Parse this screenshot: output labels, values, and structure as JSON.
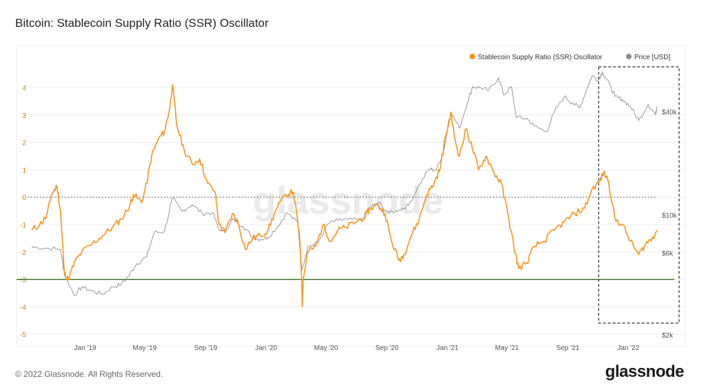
{
  "title": "Bitcoin: Stablecoin Supply Ratio (SSR) Oscillator",
  "footer": "© 2022 Glassnode. All Rights Reserved.",
  "brand": "glassnode",
  "watermark": "glassnode",
  "colors": {
    "ssr": "#f7931a",
    "price": "#8c8c8c",
    "threshold": "#2e6b12",
    "grid": "#ececec",
    "zero": "#555555"
  },
  "chart_data": {
    "type": "line",
    "title": "Bitcoin: Stablecoin Supply Ratio (SSR) Oscillator",
    "legend": {
      "position": "top-right",
      "entries": [
        "Stablecoin Supply Ratio (SSR) Oscillator",
        "Price [USD]"
      ]
    },
    "x_ticks": [
      "Jan '19",
      "May '19",
      "Sep '19",
      "Jan '20",
      "May '20",
      "Sep '20",
      "Jan '21",
      "May '21",
      "Sep '21",
      "Jan '22"
    ],
    "y_left": {
      "ticks": [
        "4",
        "3",
        "2",
        "1",
        "0",
        "-1",
        "-2",
        "-3",
        "-4",
        "-5"
      ],
      "range": [
        -5,
        4.8
      ]
    },
    "y_right": {
      "ticks": [
        "$40k",
        "$10k",
        "$6k",
        "$2k"
      ],
      "scale": "log"
    },
    "threshold_line": -3,
    "zero_line": 0,
    "highlight_box": {
      "from": "2021-11-05",
      "to": "2022-02-28"
    },
    "series": [
      {
        "name": "Stablecoin Supply Ratio (SSR) Oscillator",
        "points": [
          [
            "2018-09-15",
            -1.2
          ],
          [
            "2018-10-01",
            -1.0
          ],
          [
            "2018-10-15",
            -0.7
          ],
          [
            "2018-10-25",
            0.1
          ],
          [
            "2018-11-05",
            0.4
          ],
          [
            "2018-11-12",
            -0.5
          ],
          [
            "2018-11-20",
            -2.8
          ],
          [
            "2018-11-28",
            -3.0
          ],
          [
            "2018-12-10",
            -2.4
          ],
          [
            "2018-12-25",
            -2.0
          ],
          [
            "2019-01-15",
            -1.7
          ],
          [
            "2019-02-05",
            -1.4
          ],
          [
            "2019-02-25",
            -1.1
          ],
          [
            "2019-03-15",
            -0.8
          ],
          [
            "2019-04-01",
            -0.3
          ],
          [
            "2019-04-08",
            0.1
          ],
          [
            "2019-04-25",
            -0.2
          ],
          [
            "2019-05-05",
            0.5
          ],
          [
            "2019-05-15",
            1.5
          ],
          [
            "2019-05-28",
            2.1
          ],
          [
            "2019-06-10",
            2.4
          ],
          [
            "2019-06-20",
            3.2
          ],
          [
            "2019-06-26",
            4.1
          ],
          [
            "2019-07-05",
            2.6
          ],
          [
            "2019-07-20",
            1.7
          ],
          [
            "2019-08-05",
            1.2
          ],
          [
            "2019-08-20",
            1.4
          ],
          [
            "2019-09-05",
            0.5
          ],
          [
            "2019-09-20",
            0.2
          ],
          [
            "2019-09-28",
            -1.0
          ],
          [
            "2019-10-10",
            -1.3
          ],
          [
            "2019-10-25",
            -0.6
          ],
          [
            "2019-11-05",
            -0.9
          ],
          [
            "2019-11-20",
            -1.9
          ],
          [
            "2019-12-05",
            -1.5
          ],
          [
            "2019-12-20",
            -1.4
          ],
          [
            "2020-01-05",
            -1.2
          ],
          [
            "2020-01-20",
            -0.5
          ],
          [
            "2020-02-10",
            0.1
          ],
          [
            "2020-02-25",
            0.2
          ],
          [
            "2020-03-08",
            -1.3
          ],
          [
            "2020-03-13",
            -3.0
          ],
          [
            "2020-03-14",
            -4.0
          ],
          [
            "2020-03-16",
            -3.0
          ],
          [
            "2020-03-25",
            -2.0
          ],
          [
            "2020-04-10",
            -1.8
          ],
          [
            "2020-04-25",
            -1.0
          ],
          [
            "2020-05-10",
            -1.6
          ],
          [
            "2020-05-25",
            -1.2
          ],
          [
            "2020-06-10",
            -1.1
          ],
          [
            "2020-06-30",
            -0.9
          ],
          [
            "2020-07-20",
            -0.7
          ],
          [
            "2020-07-28",
            -0.4
          ],
          [
            "2020-08-15",
            -0.3
          ],
          [
            "2020-08-28",
            -0.6
          ],
          [
            "2020-09-10",
            -1.6
          ],
          [
            "2020-09-25",
            -2.3
          ],
          [
            "2020-10-05",
            -2.1
          ],
          [
            "2020-10-20",
            -1.4
          ],
          [
            "2020-11-05",
            -0.8
          ],
          [
            "2020-11-20",
            0.1
          ],
          [
            "2020-12-05",
            0.5
          ],
          [
            "2020-12-18",
            1.1
          ],
          [
            "2020-12-28",
            2.2
          ],
          [
            "2021-01-08",
            3.1
          ],
          [
            "2021-01-15",
            2.2
          ],
          [
            "2021-01-25",
            1.5
          ],
          [
            "2021-02-08",
            2.5
          ],
          [
            "2021-02-20",
            1.8
          ],
          [
            "2021-03-05",
            1.0
          ],
          [
            "2021-03-20",
            1.5
          ],
          [
            "2021-04-05",
            0.9
          ],
          [
            "2021-04-20",
            0.5
          ],
          [
            "2021-05-05",
            -0.8
          ],
          [
            "2021-05-15",
            -1.8
          ],
          [
            "2021-05-25",
            -2.6
          ],
          [
            "2021-06-10",
            -2.4
          ],
          [
            "2021-06-25",
            -1.8
          ],
          [
            "2021-07-15",
            -1.6
          ],
          [
            "2021-08-05",
            -1.2
          ],
          [
            "2021-08-25",
            -0.9
          ],
          [
            "2021-09-15",
            -0.6
          ],
          [
            "2021-10-05",
            -0.4
          ],
          [
            "2021-10-20",
            0.3
          ],
          [
            "2021-11-05",
            0.6
          ],
          [
            "2021-11-12",
            0.9
          ],
          [
            "2021-11-22",
            0.6
          ],
          [
            "2021-12-05",
            -0.8
          ],
          [
            "2021-12-20",
            -1.0
          ],
          [
            "2022-01-05",
            -1.6
          ],
          [
            "2022-01-22",
            -2.1
          ],
          [
            "2022-02-05",
            -1.7
          ],
          [
            "2022-02-18",
            -1.5
          ],
          [
            "2022-02-28",
            -1.2
          ]
        ]
      },
      {
        "name": "Price [USD]",
        "points": [
          [
            "2018-09-15",
            6500
          ],
          [
            "2018-10-15",
            6400
          ],
          [
            "2018-11-12",
            6300
          ],
          [
            "2018-11-20",
            4500
          ],
          [
            "2018-12-10",
            3400
          ],
          [
            "2018-12-25",
            3800
          ],
          [
            "2019-01-15",
            3600
          ],
          [
            "2019-02-05",
            3450
          ],
          [
            "2019-02-25",
            3800
          ],
          [
            "2019-03-15",
            3950
          ],
          [
            "2019-04-01",
            4500
          ],
          [
            "2019-04-15",
            5200
          ],
          [
            "2019-05-05",
            5700
          ],
          [
            "2019-05-20",
            7900
          ],
          [
            "2019-06-10",
            8000
          ],
          [
            "2019-06-26",
            12500
          ],
          [
            "2019-07-15",
            10500
          ],
          [
            "2019-08-05",
            11500
          ],
          [
            "2019-08-25",
            10200
          ],
          [
            "2019-09-15",
            10300
          ],
          [
            "2019-09-28",
            8200
          ],
          [
            "2019-10-15",
            8300
          ],
          [
            "2019-10-27",
            9500
          ],
          [
            "2019-11-15",
            8600
          ],
          [
            "2019-12-05",
            7400
          ],
          [
            "2019-12-20",
            7200
          ],
          [
            "2020-01-05",
            7400
          ],
          [
            "2020-01-25",
            8600
          ],
          [
            "2020-02-12",
            10300
          ],
          [
            "2020-03-05",
            9000
          ],
          [
            "2020-03-13",
            4800
          ],
          [
            "2020-03-25",
            6500
          ],
          [
            "2020-04-15",
            6900
          ],
          [
            "2020-05-05",
            8900
          ],
          [
            "2020-05-25",
            9300
          ],
          [
            "2020-06-15",
            9400
          ],
          [
            "2020-07-10",
            9300
          ],
          [
            "2020-07-28",
            11000
          ],
          [
            "2020-08-15",
            11800
          ],
          [
            "2020-09-05",
            10200
          ],
          [
            "2020-09-25",
            10700
          ],
          [
            "2020-10-15",
            11400
          ],
          [
            "2020-11-05",
            15000
          ],
          [
            "2020-11-25",
            18500
          ],
          [
            "2020-12-10",
            18300
          ],
          [
            "2020-12-25",
            24000
          ],
          [
            "2021-01-08",
            40000
          ],
          [
            "2021-01-25",
            32000
          ],
          [
            "2021-02-10",
            45000
          ],
          [
            "2021-02-21",
            56000
          ],
          [
            "2021-03-10",
            55000
          ],
          [
            "2021-03-25",
            53000
          ],
          [
            "2021-04-14",
            63000
          ],
          [
            "2021-04-25",
            50000
          ],
          [
            "2021-05-10",
            56000
          ],
          [
            "2021-05-20",
            37000
          ],
          [
            "2021-06-10",
            36500
          ],
          [
            "2021-06-25",
            33000
          ],
          [
            "2021-07-20",
            30500
          ],
          [
            "2021-08-05",
            40000
          ],
          [
            "2021-08-25",
            49000
          ],
          [
            "2021-09-10",
            45000
          ],
          [
            "2021-09-25",
            42000
          ],
          [
            "2021-10-10",
            55000
          ],
          [
            "2021-10-20",
            65000
          ],
          [
            "2021-11-01",
            61000
          ],
          [
            "2021-11-10",
            68000
          ],
          [
            "2021-11-25",
            57000
          ],
          [
            "2021-12-05",
            49000
          ],
          [
            "2021-12-20",
            47000
          ],
          [
            "2022-01-05",
            43000
          ],
          [
            "2022-01-22",
            35500
          ],
          [
            "2022-02-10",
            44000
          ],
          [
            "2022-02-25",
            38500
          ],
          [
            "2022-02-28",
            43000
          ]
        ]
      }
    ]
  }
}
